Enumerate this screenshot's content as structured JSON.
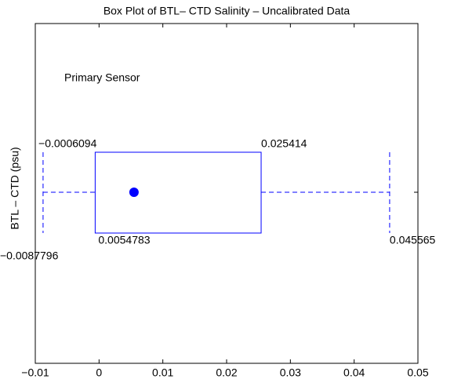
{
  "chart_data": {
    "type": "box",
    "title": "Box Plot of BTL– CTD Salinity – Uncalibrated Data",
    "ylabel": "BTL – CTD (psu)",
    "annotation": "Primary Sensor",
    "values": [
      -0.0087796,
      -0.0006094,
      0.0054783,
      0.025414,
      0.045565
    ],
    "value_labels": [
      "−0.0087796",
      "−0.0006094",
      "0.0054783",
      "0.025414",
      "0.045565"
    ],
    "color": "#0000ff",
    "xlim": [
      -0.01,
      0.05
    ],
    "xticks": [
      {
        "value": -0.01,
        "label": "−0.01"
      },
      0,
      0.01,
      0.02,
      0.03,
      0.04,
      0.05
    ]
  }
}
